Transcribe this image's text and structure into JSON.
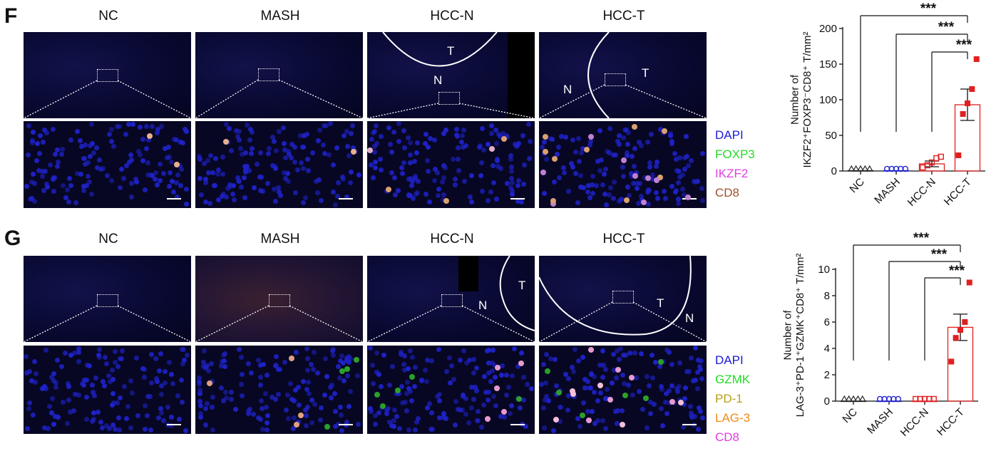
{
  "panels": [
    {
      "letter": "F",
      "columns": [
        "NC",
        "MASH",
        "HCC-N",
        "HCC-T"
      ],
      "legend": [
        {
          "text": "DAPI",
          "color": "#1a1adb"
        },
        {
          "text": "FOXP3",
          "color": "#22dd22"
        },
        {
          "text": "IKZF2",
          "color": "#e23de2"
        },
        {
          "text": "CD8",
          "color": "#a0522d"
        }
      ],
      "region_labels": {
        "hccn": [
          "T",
          "N"
        ],
        "hcct": [
          "N",
          "T"
        ]
      }
    },
    {
      "letter": "G",
      "columns": [
        "NC",
        "MASH",
        "HCC-N",
        "HCC-T"
      ],
      "legend": [
        {
          "text": "DAPI",
          "color": "#1a1adb"
        },
        {
          "text": "GZMK",
          "color": "#22dd22"
        },
        {
          "text": "PD-1",
          "color": "#b8a01a"
        },
        {
          "text": "LAG-3",
          "color": "#f08a1a"
        },
        {
          "text": "CD8",
          "color": "#e23de2"
        }
      ],
      "region_labels": {
        "hccn": [
          "N",
          "T"
        ],
        "hcct": [
          "T",
          "N"
        ]
      }
    }
  ],
  "chart_data": [
    {
      "type": "bar",
      "ylabel_line1": "Number of",
      "ylabel_line2": "IKZF2⁺FOXP3⁻CD8⁺ T/mm²",
      "categories": [
        "NC",
        "MASH",
        "HCC-N",
        "HCC-T"
      ],
      "means": [
        0.5,
        0.5,
        10,
        93
      ],
      "sem": [
        0,
        0,
        4,
        22
      ],
      "points": [
        [
          0,
          0,
          0,
          0,
          0
        ],
        [
          0,
          0,
          0,
          0,
          0
        ],
        [
          5,
          8,
          12,
          18,
          20
        ],
        [
          22,
          80,
          95,
          115,
          157
        ]
      ],
      "ylim": [
        0,
        200
      ],
      "yticks": [
        0,
        50,
        100,
        150,
        200
      ],
      "markers": [
        "triangle",
        "circle",
        "square-open",
        "square-filled"
      ],
      "colors": [
        "#222222",
        "#2222cc",
        "#e02020",
        "#e02020"
      ],
      "significance": [
        "***",
        "***",
        "***"
      ]
    },
    {
      "type": "bar",
      "ylabel_line1": "Number of",
      "ylabel_line2": "LAG-3⁺PD-1⁺GZMK⁺CD8⁺ T/mm²",
      "categories": [
        "NC",
        "MASH",
        "HCC-N",
        "HCC-T"
      ],
      "means": [
        0,
        0,
        0,
        5.6
      ],
      "sem": [
        0,
        0,
        0,
        1.0
      ],
      "points": [
        [
          0,
          0,
          0,
          0,
          0
        ],
        [
          0,
          0,
          0,
          0,
          0
        ],
        [
          0,
          0,
          0,
          0,
          0
        ],
        [
          3,
          4.8,
          5.4,
          6.0,
          9
        ]
      ],
      "ylim": [
        0,
        10
      ],
      "yticks": [
        0,
        2,
        4,
        6,
        8,
        10
      ],
      "markers": [
        "triangle",
        "circle",
        "square-open",
        "square-filled"
      ],
      "colors": [
        "#222222",
        "#2222cc",
        "#e02020",
        "#e02020"
      ],
      "significance": [
        "***",
        "***",
        "***"
      ]
    }
  ]
}
